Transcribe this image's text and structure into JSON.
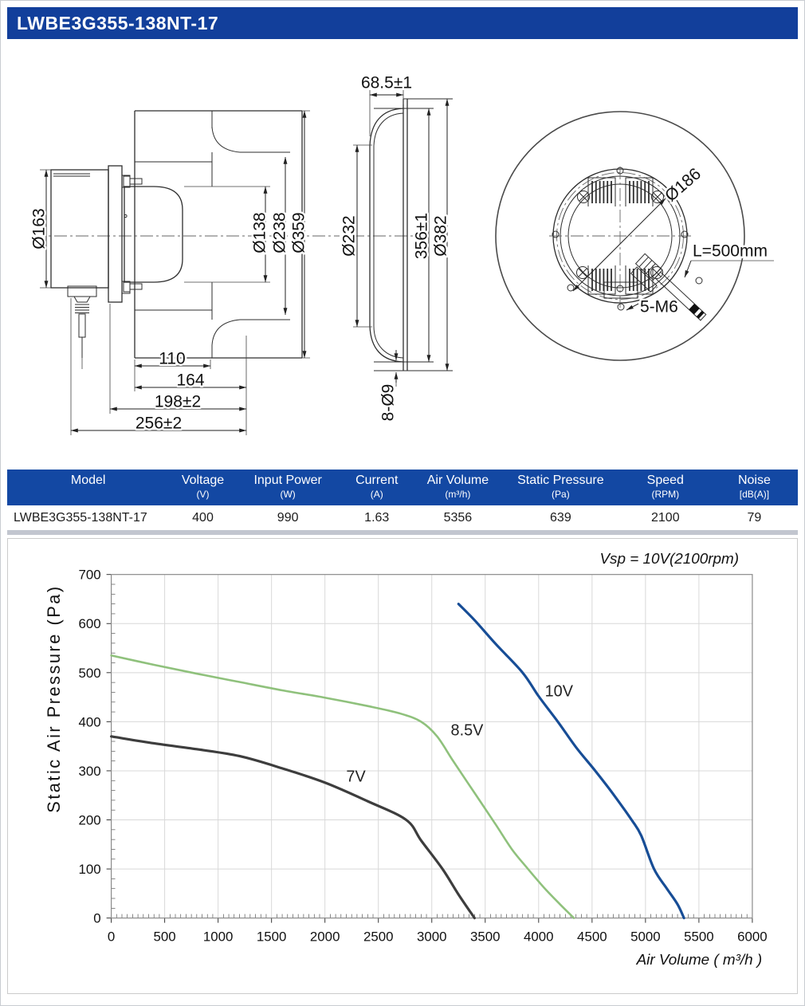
{
  "title": "LWBE3G355-138NT-17",
  "drawings": {
    "side": {
      "dia163": "Ø163",
      "dia138": "Ø138",
      "dia238": "Ø238",
      "dia359": "Ø359",
      "len110": "110",
      "len164": "164",
      "len198": "198±2",
      "len256": "256±2"
    },
    "inlet": {
      "depth": "68.5±1",
      "dia232": "Ø232",
      "len356": "356±1",
      "dia382": "Ø382",
      "holes": "8-Ø9"
    },
    "rear": {
      "dia186": "Ø186",
      "cable_len": "L=500mm",
      "screws": "5-M6"
    }
  },
  "table": {
    "columns": [
      {
        "label": "Model",
        "unit": ""
      },
      {
        "label": "Voltage",
        "unit": "(V)"
      },
      {
        "label": "Input Power",
        "unit": "(W)"
      },
      {
        "label": "Current",
        "unit": "(A)"
      },
      {
        "label": "Air Volume",
        "unit": "(m³/h)"
      },
      {
        "label": "Static Pressure",
        "unit": "(Pa)"
      },
      {
        "label": "Speed",
        "unit": "(RPM)"
      },
      {
        "label": "Noise",
        "unit": "[dB(A)]"
      }
    ],
    "rows": [
      [
        "LWBE3G355-138NT-17",
        "400",
        "990",
        "1.63",
        "5356",
        "639",
        "2100",
        "79"
      ]
    ]
  },
  "chart_data": {
    "type": "line",
    "title": "",
    "annotation": "Vsp = 10V(2100rpm)",
    "xlabel": "Air Volume ( m³/h )",
    "ylabel": "Static Air Pressure  (Pa)",
    "xlim": [
      0,
      6000
    ],
    "ylim": [
      0,
      700
    ],
    "xtick_step": 500,
    "ytick_step": 100,
    "xminor_step": 50,
    "yminor_step": 20,
    "grid": true,
    "legend_position": "inline-labels",
    "colors": {
      "grid": "#d8d8d8",
      "frame": "#8a8a8a",
      "tick": "#555555"
    },
    "series": [
      {
        "name": "7V",
        "color": "#3d3d3d",
        "width": 3.2,
        "label_at": [
          2290,
          278
        ],
        "points": [
          [
            0,
            370
          ],
          [
            400,
            356
          ],
          [
            800,
            344
          ],
          [
            1200,
            330
          ],
          [
            1600,
            305
          ],
          [
            2000,
            276
          ],
          [
            2400,
            238
          ],
          [
            2760,
            200
          ],
          [
            2900,
            158
          ],
          [
            3100,
            100
          ],
          [
            3250,
            48
          ],
          [
            3400,
            0
          ]
        ]
      },
      {
        "name": "8.5V",
        "color": "#8fc17c",
        "width": 2.6,
        "label_at": [
          3330,
          372
        ],
        "points": [
          [
            0,
            535
          ],
          [
            400,
            516
          ],
          [
            800,
            498
          ],
          [
            1200,
            481
          ],
          [
            1600,
            464
          ],
          [
            2000,
            449
          ],
          [
            2400,
            432
          ],
          [
            2700,
            417
          ],
          [
            2900,
            400
          ],
          [
            3050,
            370
          ],
          [
            3200,
            320
          ],
          [
            3400,
            255
          ],
          [
            3600,
            190
          ],
          [
            3750,
            140
          ],
          [
            3900,
            100
          ],
          [
            4050,
            62
          ],
          [
            4200,
            28
          ],
          [
            4330,
            0
          ]
        ]
      },
      {
        "name": "10V",
        "color": "#174d96",
        "width": 3.2,
        "label_at": [
          4190,
          452
        ],
        "points": [
          [
            3250,
            640
          ],
          [
            3400,
            607
          ],
          [
            3600,
            558
          ],
          [
            3850,
            500
          ],
          [
            4000,
            452
          ],
          [
            4180,
            400
          ],
          [
            4350,
            348
          ],
          [
            4530,
            300
          ],
          [
            4700,
            252
          ],
          [
            4870,
            200
          ],
          [
            4960,
            168
          ],
          [
            5080,
            100
          ],
          [
            5200,
            60
          ],
          [
            5300,
            28
          ],
          [
            5360,
            0
          ]
        ]
      }
    ]
  }
}
